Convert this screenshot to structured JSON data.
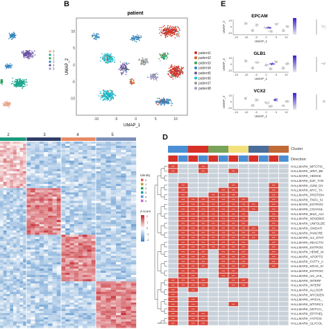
{
  "panels": {
    "b": {
      "letter": "B",
      "title": "patient",
      "xlabel": "UMAP_1",
      "ylabel": "UMAP_2",
      "xticks": [
        "-10",
        "-5",
        "0",
        "5",
        "10"
      ],
      "yticks": [
        "10",
        "5",
        "0",
        "-5",
        "-10"
      ],
      "legend": [
        "patient1",
        "patient2",
        "patient3",
        "patient4",
        "patient5",
        "patient6",
        "patient7",
        "patient8"
      ]
    },
    "d": {
      "letter": "D",
      "cluster_label": "Cluster",
      "direction_label": "Direction",
      "rows": [
        "HALLMARK_MITOTIC_",
        "HALLMARK_WNT_BE",
        "HALLMARK_HEDGE",
        "HALLMARK_E2F_TAR",
        "HALLMARK_G2M_CH",
        "HALLMARK_MYC_TA",
        "HALLMARK_PROTEIN",
        "HALLMARK_TNFA_SI",
        "HALLMARK_ESTROG",
        "HALLMARK_COAGUL",
        "HALLMARK_BILE_ACI",
        "HALLMARK_XENOBIO",
        "HALLMARK_UNFOLDE",
        "HALLMARK_OXIDATI",
        "HALLMARK_PANCRE",
        "HALLMARK_IL2_STAT",
        "HALLMARK_REACTIV",
        "HALLMARK_ESTROG",
        "HALLMARK_HEME_M",
        "HALLMARK_APOPTO",
        "HALLMARK_FATTY_A",
        "HALLMARK_KRAS_SI",
        "HALLMARK_ESTROG",
        "HALLMARK_IL6_JAK_",
        "HALLMARK_INTERF",
        "HALLMARK_INTERF",
        "HALLMARK_ALLOGR",
        "HALLMARK_MYOGEN",
        "HALLMARK_APICAL_",
        "HALLMARK_MTORC1",
        "HALLMARK_NOTCH_",
        "HALLMARK_EPITHEL",
        "HALLMARK_HYPOXI",
        "HALLMARK_GLYCOL"
      ]
    },
    "e": {
      "letter": "E",
      "genes": [
        "EPCAM",
        "GLB1",
        "VCX2"
      ],
      "xlabel": "UMAP_1",
      "ylabel": "UMAP_2",
      "xticks": [
        "-15",
        "-10",
        "-5",
        "0",
        "5",
        "10"
      ],
      "yticks": [
        "10",
        "0",
        "-10"
      ]
    },
    "c": {
      "cluster_labels": [
        "2",
        "3",
        "4",
        "5"
      ],
      "identity_title": "Identity",
      "identity_items": [
        "0",
        "1",
        "2",
        "3",
        "4",
        "5"
      ],
      "zscore_title": "Z-score",
      "zscore_ticks": [
        "2",
        "1",
        "0",
        "-1",
        "-2"
      ]
    },
    "a": {
      "legend": [
        "0",
        "1",
        "2",
        "3",
        "4",
        "5"
      ]
    }
  },
  "colors": {
    "patients": [
      "#d7301f",
      "#e6550d",
      "#31a354",
      "#3182bd",
      "#6a51a3",
      "#17becf",
      "#969696",
      "#9e9ac8"
    ],
    "clusters": [
      "#4a8fd4",
      "#d73027",
      "#7aa35a",
      "#f2e07c",
      "#4a6d9a",
      "#c06a38"
    ],
    "heat_high": "#c4262e",
    "heat_low": "#3a7fc3",
    "d_red": "#d9463b",
    "d_gray": "#c9d2da"
  }
}
